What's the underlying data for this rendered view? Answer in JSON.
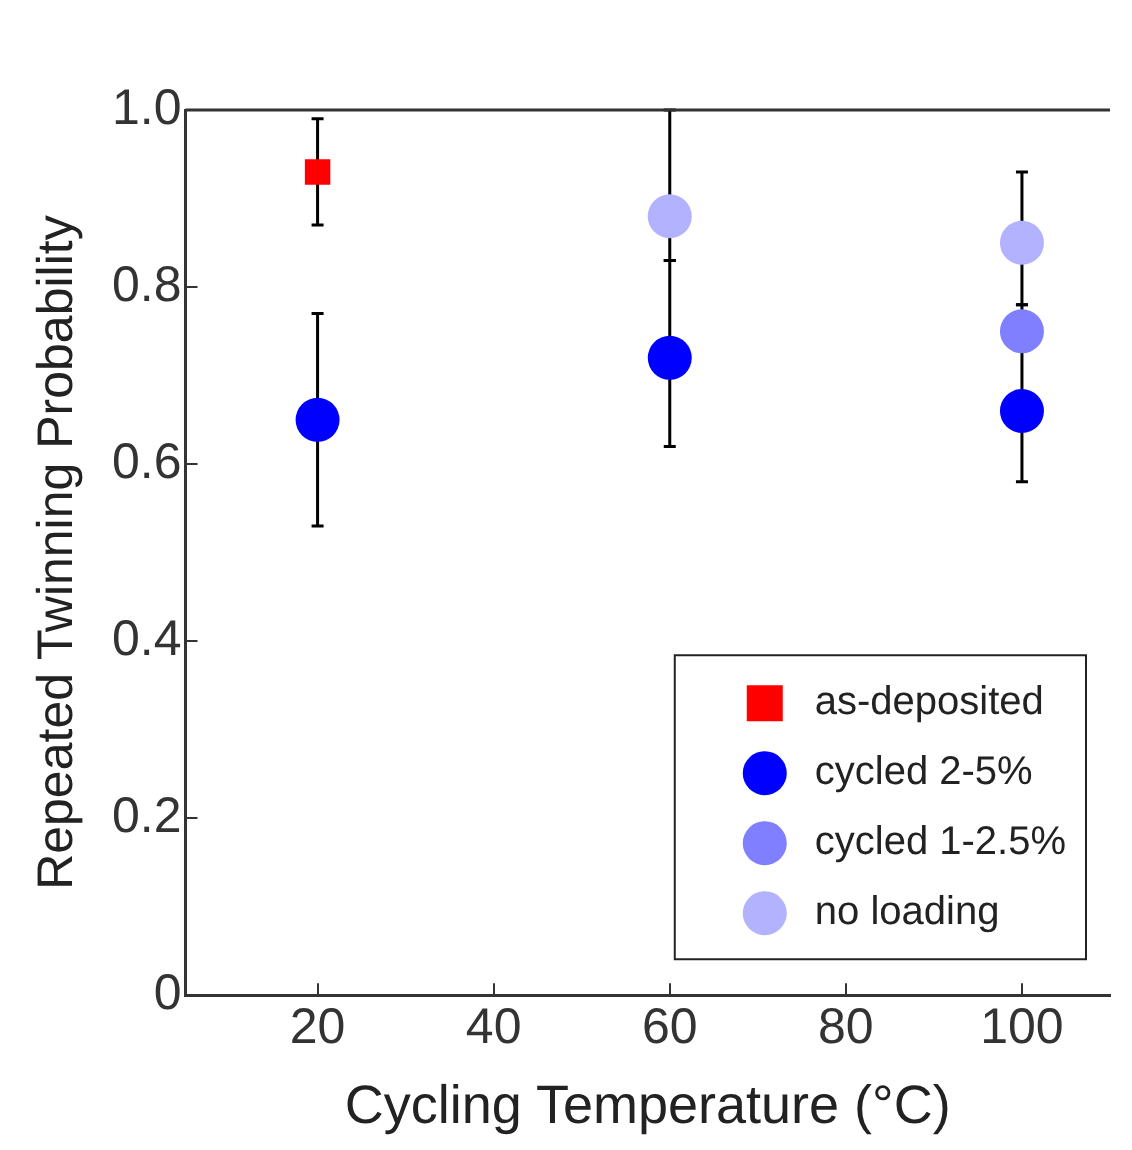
{
  "chart_data": {
    "type": "scatter",
    "xlabel": "Cycling Temperature (°C)",
    "ylabel": "Repeated Twinning Probability",
    "xlim": [
      5,
      110
    ],
    "xticks": [
      20,
      40,
      60,
      80,
      100
    ],
    "ylim": [
      0,
      1
    ],
    "yticks": [
      0,
      0.2,
      0.4,
      0.6,
      0.8,
      {
        "value": 1,
        "label": "1.0"
      }
    ],
    "grid": false,
    "legend": "bottom right",
    "series": [
      {
        "name": "as-deposited",
        "color": "#ff0000",
        "marker": "square",
        "x": [
          20
        ],
        "values": [
          0.93
        ],
        "errors": [
          [
            0.87,
            0.99
          ]
        ]
      },
      {
        "name": "cycled 2-5%",
        "color": "#0000ff",
        "marker": "circle",
        "x": [
          20,
          60,
          100
        ],
        "values": [
          0.65,
          0.72,
          0.66
        ],
        "errors": [
          [
            0.53,
            0.77
          ],
          [
            0.62,
            0.83
          ],
          [
            0.58,
            0.78
          ]
        ]
      },
      {
        "name": "cycled 1-2.5%",
        "color": "#7f7fff",
        "marker": "circle",
        "x": [
          100
        ],
        "values": [
          0.75
        ]
      },
      {
        "name": "no loading",
        "color": "#b2b2ff",
        "marker": "circle",
        "x": [
          60,
          100
        ],
        "values": [
          0.88,
          0.85
        ],
        "errors": [
          [
            0.83,
            1.0
          ],
          [
            0.78,
            0.93
          ]
        ]
      }
    ]
  }
}
